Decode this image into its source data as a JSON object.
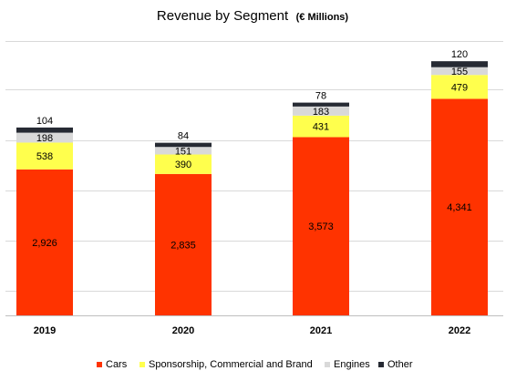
{
  "chart_data": {
    "type": "bar",
    "stacked": true,
    "title": "Revenue by Segment",
    "subtitle": "(€ Millions)",
    "categories": [
      "2019",
      "2020",
      "2021",
      "2022"
    ],
    "series": [
      {
        "name": "Cars",
        "color": "#ff3300",
        "values": [
          2926,
          2835,
          3573,
          4341
        ],
        "labels": [
          "2,926",
          "2,835",
          "3,573",
          "4,341"
        ]
      },
      {
        "name": "Sponsorship, Commercial and Brand",
        "color": "#ffff4d",
        "values": [
          538,
          390,
          431,
          479
        ],
        "labels": [
          "538",
          "390",
          "431",
          "479"
        ]
      },
      {
        "name": "Engines",
        "color": "#d9d9d9",
        "values": [
          198,
          151,
          183,
          155
        ],
        "labels": [
          "198",
          "151",
          "183",
          "155"
        ]
      },
      {
        "name": "Other",
        "color": "#262a33",
        "values": [
          104,
          84,
          78,
          120
        ],
        "labels": [
          "104",
          "84",
          "78",
          "120"
        ]
      }
    ],
    "ylim": [
      0,
      5500
    ],
    "grid": true,
    "legend_position": "bottom"
  }
}
